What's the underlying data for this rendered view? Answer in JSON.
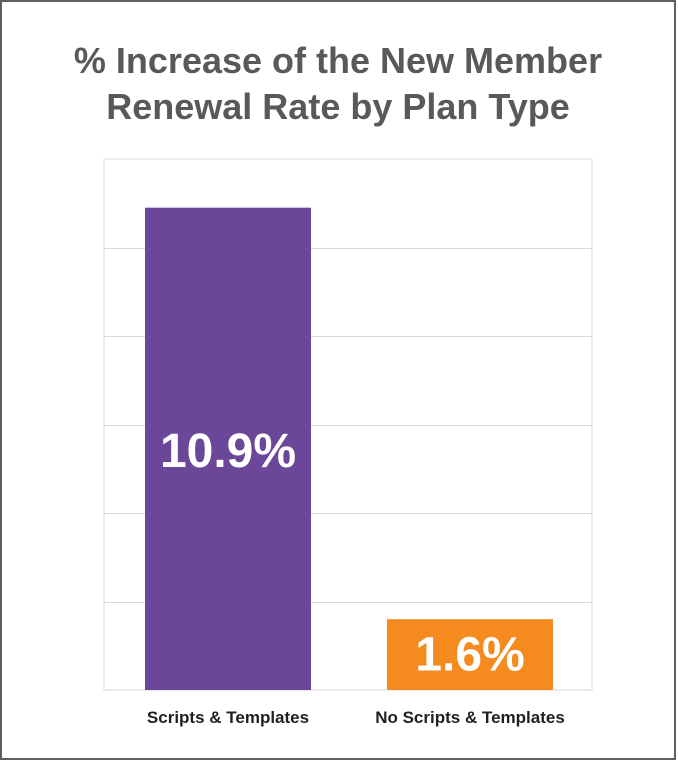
{
  "chart_data": {
    "type": "bar",
    "title_lines": [
      "% Increase of the New Member",
      "Renewal Rate by Plan Type"
    ],
    "categories": [
      "Scripts & Templates",
      "No Scripts & Templates"
    ],
    "values": [
      10.9,
      1.6
    ],
    "data_labels": [
      "10.9%",
      "1.6%"
    ],
    "colors": [
      "#6a4799",
      "#f58a1f"
    ],
    "ylim": [
      0,
      12
    ],
    "grid": true,
    "legend": "none",
    "xlabel": "",
    "ylabel": ""
  }
}
